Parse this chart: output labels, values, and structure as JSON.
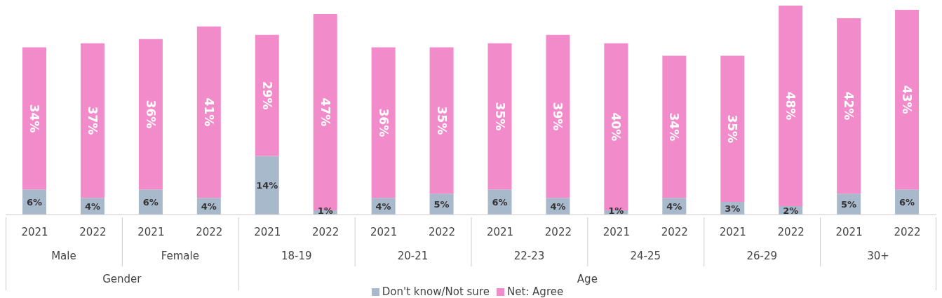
{
  "chart_data": {
    "type": "bar",
    "stacked": true,
    "legend": "bottom",
    "categories": [
      "2021",
      "2022",
      "2021",
      "2022",
      "2021",
      "2022",
      "2021",
      "2022",
      "2021",
      "2022",
      "2021",
      "2022",
      "2021",
      "2022",
      "2021",
      "2022"
    ],
    "series": [
      {
        "name": "Don't know/Not sure",
        "color": "#a9b9cc",
        "values": [
          6,
          4,
          6,
          4,
          14,
          1,
          4,
          5,
          6,
          4,
          1,
          4,
          3,
          2,
          5,
          6
        ],
        "value_labels": [
          "6%",
          "4%",
          "6%",
          "4%",
          "14%",
          "1%",
          "4%",
          "5%",
          "6%",
          "4%",
          "1%",
          "4%",
          "3%",
          "2%",
          "5%",
          "6%"
        ]
      },
      {
        "name": "Net: Agree",
        "color": "#f28bca",
        "values": [
          34,
          37,
          36,
          41,
          29,
          47,
          36,
          35,
          35,
          39,
          40,
          34,
          35,
          48,
          42,
          43
        ],
        "value_labels": [
          "34%",
          "37%",
          "36%",
          "41%",
          "29%",
          "47%",
          "36%",
          "35%",
          "35%",
          "39%",
          "40%",
          "34%",
          "35%",
          "48%",
          "42%",
          "43%"
        ]
      }
    ],
    "annotations": [
      "Male",
      "Female",
      "18-19",
      "20-21",
      "22-23",
      "24-25",
      "26-29",
      "30+",
      "Gender",
      "Age"
    ]
  }
}
